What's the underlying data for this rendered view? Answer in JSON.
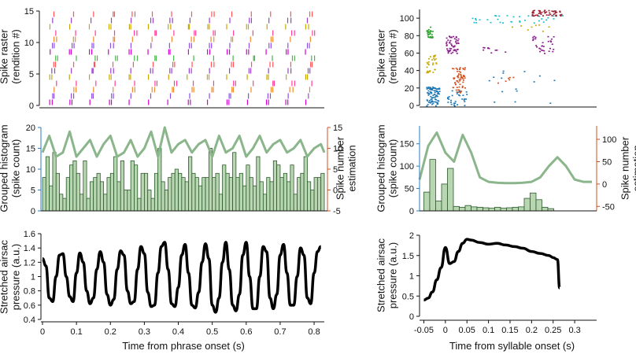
{
  "colors": {
    "axis": "#111111",
    "histogram_axis": "#2a7dbf",
    "estimation_axis": "#d2501e",
    "bar_fill": "#b9d6b2",
    "bar_stroke": "#2b5a2b",
    "curve": "#8bb58b",
    "pressure": "#000000",
    "raster_palette": [
      "#d400d4",
      "#ff3b9a",
      "#ff5555",
      "#8c4fe0",
      "#c8a800",
      "#4ab34a",
      "#f08a2a",
      "#9a3fd0"
    ],
    "raster_palette_right": [
      "#1f77b4",
      "#ff7f0e",
      "#2ca02c",
      "#8b1a8b",
      "#d2501e",
      "#17becf",
      "#9b1c2c",
      "#c8a800",
      "#e377c2"
    ]
  },
  "chart_data": [
    {
      "id": "left-raster",
      "type": "scatter",
      "ylabel": "Spike raster\n(rendition #)",
      "ylim": [
        0,
        15
      ],
      "yticks": [
        0,
        5,
        10,
        15
      ],
      "xlim": [
        0,
        0.83
      ],
      "renditions": 15
    },
    {
      "id": "left-histogram",
      "type": "bar",
      "ylabel": "Grouped histogram\n(spike count)",
      "ylim": [
        0,
        20
      ],
      "yticks": [
        0,
        5,
        10,
        15,
        20
      ],
      "y2label": "Spike number\nestimation",
      "y2lim": [
        -5,
        15
      ],
      "y2ticks": [
        -5,
        0,
        5,
        10,
        15
      ],
      "xlim": [
        0,
        0.83
      ],
      "bin_width": 0.01,
      "values": [
        8,
        13,
        6,
        14,
        9,
        4,
        3,
        8,
        11,
        12,
        9,
        4,
        12,
        3,
        7,
        8,
        9,
        7,
        4,
        8,
        9,
        13,
        7,
        12,
        5,
        5,
        12,
        11,
        3,
        9,
        9,
        5,
        3,
        9,
        15,
        7,
        5,
        8,
        9,
        10,
        9,
        8,
        7,
        13,
        9,
        8,
        6,
        8,
        8,
        15,
        8,
        9,
        4,
        11,
        9,
        8,
        14,
        8,
        9,
        6,
        11,
        8,
        6,
        13,
        7,
        4,
        8,
        7,
        12,
        11,
        8,
        9,
        7,
        11,
        4,
        8,
        9,
        13,
        7,
        5,
        8,
        8,
        9
      ],
      "curve_x": [
        0,
        0.02,
        0.04,
        0.06,
        0.08,
        0.1,
        0.12,
        0.14,
        0.16,
        0.18,
        0.2,
        0.22,
        0.24,
        0.26,
        0.28,
        0.3,
        0.32,
        0.34,
        0.36,
        0.38,
        0.4,
        0.42,
        0.44,
        0.46,
        0.48,
        0.5,
        0.52,
        0.54,
        0.56,
        0.58,
        0.6,
        0.62,
        0.64,
        0.66,
        0.68,
        0.7,
        0.72,
        0.74,
        0.76,
        0.78,
        0.8,
        0.82,
        0.83
      ],
      "curve_y": [
        9,
        13,
        8,
        9,
        14,
        8,
        10,
        12,
        8,
        11,
        13,
        8,
        9,
        12,
        8,
        10,
        14,
        8,
        15,
        9,
        11,
        12,
        9,
        11,
        12,
        8,
        13,
        9,
        10,
        13,
        8,
        10,
        13,
        9,
        11,
        12,
        9,
        10,
        12,
        8,
        10,
        11,
        9
      ]
    },
    {
      "id": "left-pressure",
      "type": "line",
      "title": "",
      "xlabel": "Time from phrase onset (s)",
      "ylabel": "Stretched airsac\npressure (a.u.)",
      "xlim": [
        0,
        0.83
      ],
      "ylim": [
        0.4,
        1.6
      ],
      "xticks": [
        0,
        0.1,
        0.2,
        0.3,
        0.4,
        0.5,
        0.6,
        0.7,
        0.8
      ],
      "yticks": [
        0.4,
        0.6,
        0.8,
        1,
        1.2,
        1.4,
        1.6
      ],
      "x": [
        0,
        0.01,
        0.02,
        0.03,
        0.04,
        0.05,
        0.06,
        0.07,
        0.08,
        0.09,
        0.1,
        0.11,
        0.12,
        0.13,
        0.14,
        0.15,
        0.16,
        0.17,
        0.18,
        0.19,
        0.2,
        0.21,
        0.22,
        0.23,
        0.24,
        0.25,
        0.26,
        0.27,
        0.28,
        0.29,
        0.3,
        0.31,
        0.32,
        0.33,
        0.34,
        0.35,
        0.36,
        0.37,
        0.38,
        0.39,
        0.4,
        0.41,
        0.42,
        0.43,
        0.44,
        0.45,
        0.46,
        0.47,
        0.48,
        0.49,
        0.5,
        0.51,
        0.52,
        0.53,
        0.54,
        0.55,
        0.56,
        0.57,
        0.58,
        0.59,
        0.6,
        0.61,
        0.62,
        0.63,
        0.64,
        0.65,
        0.66,
        0.67,
        0.68,
        0.69,
        0.7,
        0.71,
        0.72,
        0.73,
        0.74,
        0.75,
        0.76,
        0.77,
        0.78,
        0.79,
        0.8,
        0.81,
        0.82
      ],
      "y": [
        1.25,
        1.15,
        0.7,
        0.65,
        1.0,
        1.3,
        1.32,
        1.0,
        0.72,
        0.65,
        1.05,
        1.33,
        1.2,
        0.8,
        0.62,
        0.7,
        1.1,
        1.35,
        1.2,
        0.75,
        0.6,
        0.68,
        1.1,
        1.36,
        1.3,
        0.8,
        0.62,
        0.65,
        1.1,
        1.42,
        1.32,
        0.78,
        0.58,
        0.6,
        1.05,
        1.42,
        1.48,
        1.1,
        0.62,
        0.58,
        0.85,
        1.3,
        1.45,
        1.05,
        0.6,
        0.56,
        0.78,
        1.2,
        1.46,
        1.25,
        0.6,
        0.5,
        0.7,
        1.2,
        1.48,
        1.1,
        0.6,
        0.52,
        0.75,
        1.3,
        1.48,
        1.0,
        0.55,
        0.55,
        1.0,
        1.42,
        1.35,
        0.7,
        0.55,
        0.75,
        1.3,
        1.45,
        1.05,
        0.6,
        0.6,
        1.0,
        1.4,
        1.3,
        0.7,
        0.62,
        1.05,
        1.35,
        1.42
      ]
    },
    {
      "id": "right-raster",
      "type": "scatter",
      "ylabel": "Spike raster\n(rendition #)",
      "ylim": [
        0,
        110
      ],
      "yticks": [
        0,
        20,
        40,
        60,
        80,
        100
      ],
      "xlim": [
        -0.06,
        0.34
      ]
    },
    {
      "id": "right-histogram",
      "type": "bar",
      "ylabel": "Grouped histogram\n(spike count)",
      "ylim": [
        0,
        190
      ],
      "yticks": [
        0,
        50,
        100,
        150
      ],
      "y2label": "Spike number\nestimation",
      "y2lim": [
        -60,
        130
      ],
      "y2ticks": [
        -50,
        0,
        50,
        100
      ],
      "xlim": [
        -0.06,
        0.34
      ],
      "bin_start": -0.05,
      "bin_width": 0.0137,
      "values": [
        42,
        115,
        22,
        60,
        95,
        10,
        8,
        12,
        9,
        8,
        7,
        6,
        8,
        6,
        7,
        8,
        9,
        28,
        40,
        25,
        8,
        5
      ],
      "curve_x": [
        -0.06,
        -0.04,
        -0.02,
        0.0,
        0.02,
        0.04,
        0.06,
        0.08,
        0.1,
        0.12,
        0.14,
        0.16,
        0.18,
        0.2,
        0.22,
        0.24,
        0.26,
        0.28,
        0.3,
        0.32,
        0.34
      ],
      "curve_y": [
        10,
        85,
        115,
        70,
        50,
        110,
        70,
        15,
        5,
        3,
        2,
        2,
        3,
        5,
        15,
        40,
        60,
        40,
        10,
        5,
        5
      ]
    },
    {
      "id": "right-pressure",
      "type": "line",
      "title": "",
      "xlabel": "Time from syllable onset (s)",
      "ylabel": "Stretched airsac\npressure (a.u.)",
      "xlim": [
        -0.06,
        0.34
      ],
      "ylim": [
        0,
        2
      ],
      "xticks": [
        -0.05,
        0,
        0.05,
        0.1,
        0.15,
        0.2,
        0.25,
        0.3
      ],
      "xtick_labels": [
        "-0.05",
        "0",
        "0.05",
        "0.1",
        "0.15",
        "0.2",
        "0.25",
        "0.3"
      ],
      "yticks": [
        0,
        0.5,
        1,
        1.5,
        2
      ],
      "x": [
        -0.05,
        -0.04,
        -0.03,
        -0.02,
        -0.01,
        0.0,
        0.01,
        0.02,
        0.03,
        0.04,
        0.05,
        0.06,
        0.08,
        0.1,
        0.12,
        0.14,
        0.16,
        0.18,
        0.2,
        0.22,
        0.24,
        0.25,
        0.26,
        0.265
      ],
      "y": [
        0.4,
        0.45,
        0.6,
        0.9,
        1.2,
        1.7,
        1.3,
        1.35,
        1.6,
        1.8,
        1.9,
        1.88,
        1.82,
        1.78,
        1.8,
        1.76,
        1.72,
        1.68,
        1.6,
        1.55,
        1.5,
        1.45,
        1.4,
        0.7
      ]
    }
  ]
}
